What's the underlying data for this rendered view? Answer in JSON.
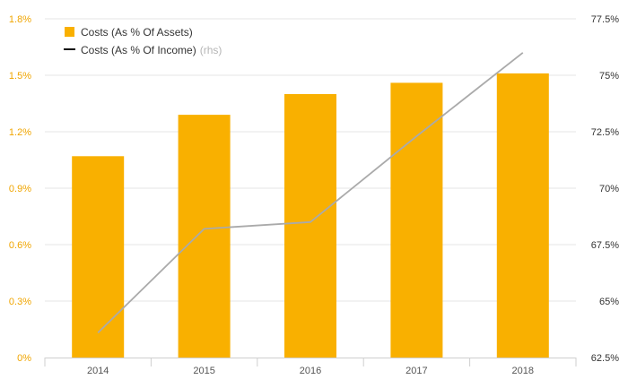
{
  "chart_data": {
    "type": "bar+line",
    "categories": [
      "2014",
      "2015",
      "2016",
      "2017",
      "2018"
    ],
    "series": [
      {
        "name": "Costs (As % Of Assets)",
        "type": "bar",
        "axis": "left",
        "values": [
          1.07,
          1.29,
          1.4,
          1.46,
          1.51
        ],
        "color": "#f9b000"
      },
      {
        "name": "Costs (As % Of Income)",
        "type": "line",
        "axis": "right",
        "values": [
          63.6,
          68.2,
          68.5,
          72.3,
          76.0
        ],
        "color": "#aaaaaa",
        "note": "(rhs)"
      }
    ],
    "left_axis": {
      "ylim": [
        0,
        1.8
      ],
      "ticks": [
        0,
        0.3,
        0.6,
        0.9,
        1.2,
        1.5,
        1.8
      ],
      "tick_labels": [
        "0%",
        "0.3%",
        "0.6%",
        "0.9%",
        "1.2%",
        "1.5%",
        "1.8%"
      ],
      "color": "#f0a500"
    },
    "right_axis": {
      "ylim": [
        62.5,
        77.5
      ],
      "ticks": [
        62.5,
        65,
        67.5,
        70,
        72.5,
        75,
        77.5
      ],
      "tick_labels": [
        "62.5%",
        "65%",
        "67.5%",
        "70%",
        "72.5%",
        "75%",
        "77.5%"
      ],
      "color": "#333333"
    },
    "legend": {
      "placement": "top-left",
      "items": [
        {
          "label": "Costs (As % Of Assets)",
          "marker": "square"
        },
        {
          "label": "Costs (As % Of Income)",
          "marker": "line",
          "note": "(rhs)"
        }
      ]
    },
    "grid": true,
    "grid_color": "#e6e6e6"
  }
}
